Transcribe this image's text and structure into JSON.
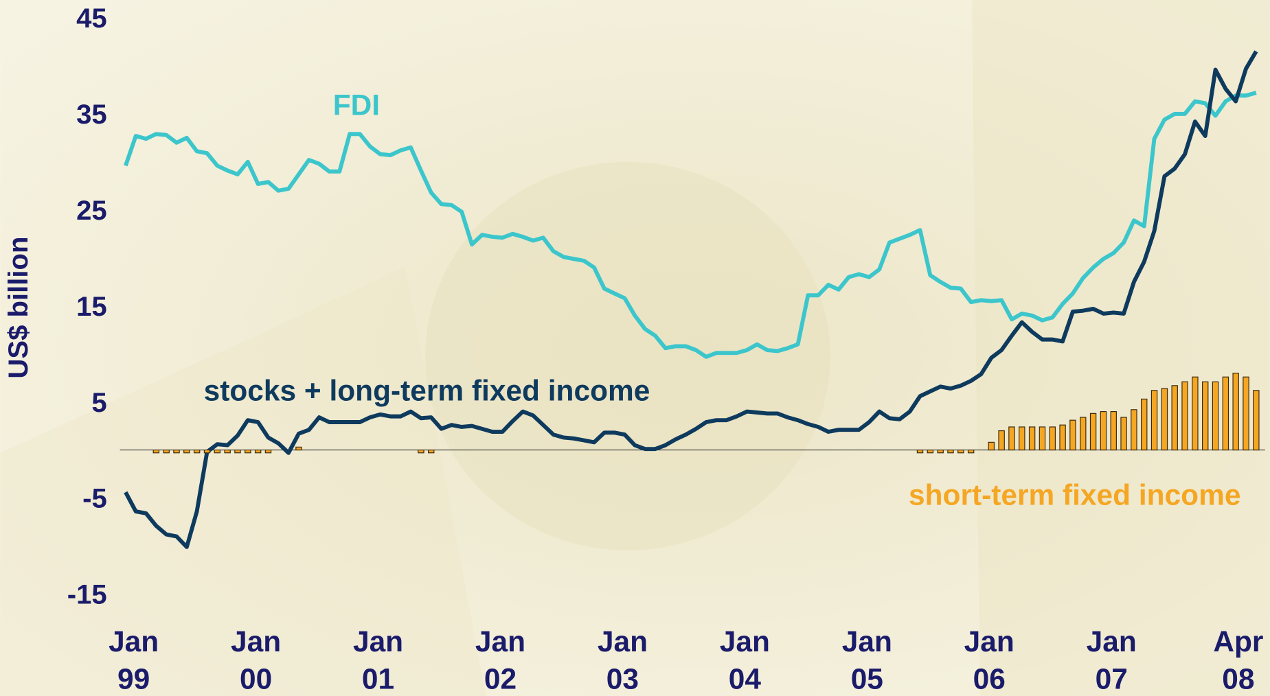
{
  "chart_data": {
    "type": "line",
    "y_axis_label": "US$ billion",
    "ylim": [
      -15,
      45
    ],
    "yticks": [
      -15,
      -5,
      5,
      15,
      25,
      35,
      45
    ],
    "categories": [
      "Jan 99",
      null,
      null,
      null,
      null,
      null,
      null,
      null,
      null,
      null,
      null,
      null,
      "Jan 00",
      null,
      null,
      null,
      null,
      null,
      null,
      null,
      null,
      null,
      null,
      null,
      "Jan 01",
      null,
      null,
      null,
      null,
      null,
      null,
      null,
      null,
      null,
      null,
      null,
      "Jan 02",
      null,
      null,
      null,
      null,
      null,
      null,
      null,
      null,
      null,
      null,
      null,
      "Jan 03",
      null,
      null,
      null,
      null,
      null,
      null,
      null,
      null,
      null,
      null,
      null,
      "Jan 04",
      null,
      null,
      null,
      null,
      null,
      null,
      null,
      null,
      null,
      null,
      null,
      "Jan 05",
      null,
      null,
      null,
      null,
      null,
      null,
      null,
      null,
      null,
      null,
      null,
      "Jan 06",
      null,
      null,
      null,
      null,
      null,
      null,
      null,
      null,
      null,
      null,
      null,
      "Jan 07",
      null,
      null,
      null,
      null,
      null,
      null,
      null,
      null,
      null,
      null,
      null,
      null,
      null,
      null,
      "Apr 08"
    ],
    "series": [
      {
        "name": "FDI",
        "type": "line",
        "color": "#3cc6cc",
        "values": [
          29.6,
          32.7,
          32.4,
          32.9,
          32.8,
          32.0,
          32.5,
          31.1,
          30.9,
          29.6,
          29.1,
          28.7,
          30.0,
          27.7,
          27.9,
          27.0,
          27.2,
          28.7,
          30.2,
          29.8,
          29.0,
          29.0,
          32.9,
          32.9,
          31.6,
          30.8,
          30.7,
          31.2,
          31.5,
          29.1,
          26.8,
          25.6,
          25.5,
          24.8,
          21.4,
          22.4,
          22.2,
          22.1,
          22.5,
          22.2,
          21.8,
          22.1,
          20.7,
          20.1,
          19.9,
          19.7,
          19.0,
          16.8,
          16.3,
          15.8,
          14.0,
          12.6,
          11.9,
          10.6,
          10.8,
          10.8,
          10.4,
          9.7,
          10.1,
          10.1,
          10.1,
          10.4,
          11.0,
          10.4,
          10.3,
          10.6,
          11.0,
          16.1,
          16.1,
          17.2,
          16.7,
          18.0,
          18.3,
          18.0,
          18.8,
          21.6,
          22.0,
          22.4,
          22.9,
          18.2,
          17.5,
          16.9,
          16.8,
          15.4,
          15.6,
          15.5,
          15.6,
          13.6,
          14.2,
          14.0,
          13.5,
          13.8,
          15.2,
          16.3,
          17.9,
          19.0,
          19.9,
          20.5,
          21.6,
          23.9,
          23.3,
          32.4,
          34.4,
          35.0,
          35.0,
          36.3,
          36.1,
          34.8,
          36.3,
          36.9,
          36.9,
          37.2
        ]
      },
      {
        "name": "stocks + long-term fixed income",
        "type": "line",
        "color": "#0e3a5e",
        "values": [
          -4.4,
          -6.4,
          -6.6,
          -7.9,
          -8.8,
          -9.0,
          -10.1,
          -6.4,
          -0.2,
          0.6,
          0.5,
          1.5,
          3.1,
          2.9,
          1.3,
          0.7,
          -0.3,
          1.7,
          2.1,
          3.4,
          2.9,
          2.9,
          2.9,
          2.9,
          3.4,
          3.7,
          3.5,
          3.5,
          4.0,
          3.3,
          3.4,
          2.2,
          2.6,
          2.4,
          2.5,
          2.2,
          1.9,
          1.9,
          3.0,
          4.0,
          3.6,
          2.6,
          1.6,
          1.3,
          1.2,
          1.0,
          0.8,
          1.8,
          1.8,
          1.6,
          0.5,
          0.1,
          0.1,
          0.5,
          1.1,
          1.6,
          2.2,
          2.9,
          3.1,
          3.1,
          3.5,
          4.0,
          3.9,
          3.8,
          3.8,
          3.4,
          3.1,
          2.7,
          2.4,
          1.9,
          2.1,
          2.1,
          2.1,
          2.9,
          4.0,
          3.3,
          3.2,
          4.0,
          5.6,
          6.1,
          6.6,
          6.4,
          6.7,
          7.2,
          7.9,
          9.6,
          10.4,
          11.9,
          13.3,
          12.3,
          11.5,
          11.5,
          11.3,
          14.4,
          14.5,
          14.7,
          14.2,
          14.3,
          14.2,
          17.5,
          19.6,
          22.8,
          28.5,
          29.3,
          30.8,
          34.2,
          32.7,
          39.6,
          37.6,
          36.3,
          39.7,
          41.5
        ]
      },
      {
        "name": "short-term fixed income",
        "type": "bar",
        "color": "#f5a623",
        "values": [
          null,
          null,
          null,
          -0.3,
          -0.3,
          -0.3,
          -0.3,
          -0.3,
          -0.3,
          -0.3,
          -0.3,
          -0.3,
          -0.3,
          -0.3,
          -0.3,
          null,
          null,
          0.3,
          null,
          null,
          null,
          null,
          null,
          null,
          null,
          null,
          null,
          null,
          null,
          -0.3,
          -0.3,
          null,
          null,
          null,
          null,
          null,
          null,
          null,
          null,
          null,
          null,
          null,
          null,
          null,
          null,
          null,
          null,
          null,
          null,
          null,
          null,
          null,
          null,
          null,
          null,
          null,
          null,
          null,
          null,
          null,
          null,
          null,
          null,
          null,
          null,
          null,
          null,
          null,
          null,
          null,
          null,
          null,
          null,
          null,
          null,
          null,
          null,
          null,
          -0.3,
          -0.3,
          -0.3,
          -0.3,
          -0.3,
          -0.3,
          null,
          0.8,
          2.0,
          2.4,
          2.4,
          2.4,
          2.4,
          2.4,
          2.6,
          3.1,
          3.4,
          3.8,
          4.0,
          4.0,
          3.4,
          4.2,
          5.3,
          6.2,
          6.4,
          6.7,
          7.1,
          7.6,
          7.1,
          7.1,
          7.6,
          8.0,
          7.6,
          6.2
        ]
      }
    ]
  }
}
